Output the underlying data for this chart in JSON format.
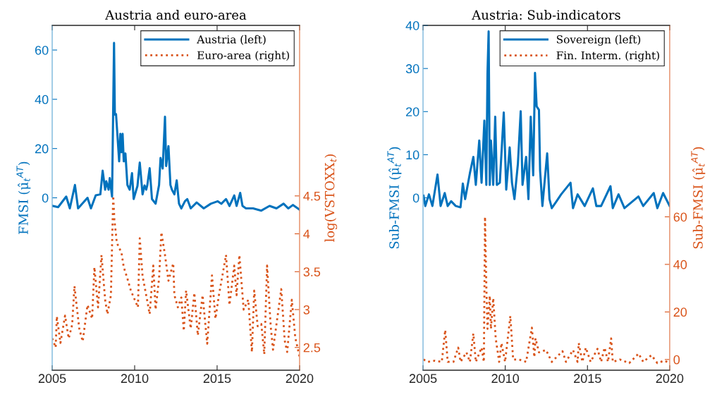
{
  "chart_data": [
    {
      "type": "line",
      "title": "Austria and euro-area",
      "ylabel": "FMSI (μ̂$_{t}$$^{AT}$)",
      "y2label": "log(VSTOXX$_{t}$)",
      "legend": "top right",
      "xlim": [
        2005,
        2020
      ],
      "xticks": [
        2005,
        2010,
        2015,
        2020
      ],
      "ylim": [
        -70,
        70
      ],
      "yticks": [
        0,
        20,
        40,
        60
      ],
      "y2lim": [
        2.2,
        6.75
      ],
      "y2ticks": [
        2.5,
        3,
        3.5,
        4,
        4.5
      ],
      "series": [
        {
          "name": "Austria (left)",
          "color": "#0072bd",
          "line_style": "solid",
          "x": [
            2005.04,
            2005.36,
            2005.85,
            2006.07,
            2006.38,
            2006.57,
            2007.14,
            2007.35,
            2007.64,
            2007.92,
            2008.06,
            2008.21,
            2008.28,
            2008.42,
            2008.49,
            2008.63,
            2008.75,
            2008.8,
            2008.87,
            2008.99,
            2009.06,
            2009.13,
            2009.2,
            2009.27,
            2009.34,
            2009.44,
            2009.56,
            2009.7,
            2009.84,
            2009.94,
            2010.09,
            2010.17,
            2010.31,
            2010.48,
            2010.6,
            2010.7,
            2010.77,
            2010.91,
            2011.05,
            2011.27,
            2011.48,
            2011.57,
            2011.7,
            2011.84,
            2011.91,
            2012.05,
            2012.17,
            2012.26,
            2012.41,
            2012.55,
            2012.69,
            2012.83,
            2013.05,
            2013.19,
            2013.4,
            2013.76,
            2014.19,
            2014.62,
            2015.04,
            2015.26,
            2015.54,
            2015.75,
            2016.04,
            2016.18,
            2016.4,
            2016.54,
            2016.75,
            2017.18,
            2017.68,
            2018.18,
            2018.6,
            2019.03,
            2019.32,
            2019.6,
            2020.0
          ],
          "values": [
            -3.3,
            -3.8,
            0.5,
            -4.3,
            5.2,
            -4.3,
            0,
            -4.3,
            1,
            1.4,
            11,
            3.3,
            6.7,
            3.3,
            8,
            0.5,
            62.9,
            33.8,
            34,
            22,
            14.8,
            26,
            18.5,
            26,
            14.8,
            18,
            5.2,
            3.3,
            10,
            -0.5,
            3,
            4.8,
            14.3,
            1.4,
            5,
            3.3,
            5.2,
            12,
            -0.5,
            -2.4,
            5.2,
            16.2,
            11.9,
            32.9,
            12.9,
            21,
            5.2,
            3.3,
            1.4,
            7.1,
            -2.4,
            -4.3,
            -1.4,
            -0.5,
            -4.3,
            -1.9,
            -4.3,
            -2.4,
            -1.4,
            -2.4,
            -0.5,
            -3.3,
            1,
            -3.3,
            2,
            -3.3,
            -4.3,
            -4.3,
            -5.2,
            -3.3,
            -4.3,
            -2.4,
            -4.3,
            -2.9,
            -4.8
          ]
        },
        {
          "name": "Euro-area (right)",
          "color": "#d95319",
          "line_style": "dotted",
          "axis": "y2",
          "x": [
            2005.0,
            2005.21,
            2005.28,
            2005.5,
            2005.78,
            2006.0,
            2006.21,
            2006.35,
            2006.64,
            2006.85,
            2007.14,
            2007.42,
            2007.56,
            2007.78,
            2007.99,
            2008.21,
            2008.35,
            2008.56,
            2008.7,
            2008.77,
            2008.92,
            2009.2,
            2009.34,
            2009.56,
            2009.77,
            2010.2,
            2010.31,
            2010.48,
            2010.7,
            2010.91,
            2011.13,
            2011.27,
            2011.48,
            2011.62,
            2011.84,
            2012.05,
            2012.34,
            2012.41,
            2012.62,
            2012.83,
            2012.98,
            2013.12,
            2013.4,
            2013.62,
            2013.83,
            2014.12,
            2014.4,
            2014.69,
            2014.9,
            2015.11,
            2015.54,
            2015.75,
            2016.04,
            2016.18,
            2016.35,
            2016.61,
            2016.89,
            2017.11,
            2017.25,
            2017.46,
            2017.68,
            2017.86,
            2018.03,
            2018.25,
            2018.39,
            2018.89,
            2019.1,
            2019.25,
            2019.53,
            2019.74,
            2020.0
          ],
          "values": [
            2.62,
            2.5,
            2.91,
            2.56,
            2.92,
            2.62,
            2.8,
            3.31,
            2.75,
            2.58,
            3.06,
            2.88,
            3.56,
            3.03,
            3.72,
            3.13,
            2.94,
            3.19,
            4.5,
            4.19,
            3.88,
            3.75,
            3.56,
            3.41,
            3.25,
            3.03,
            3.94,
            3.44,
            3.19,
            2.94,
            3.58,
            3.0,
            3.41,
            4.02,
            3.72,
            3.38,
            3.61,
            3.19,
            3.03,
            3.16,
            2.72,
            3.25,
            2.75,
            3.22,
            2.66,
            3.19,
            2.55,
            3.45,
            2.88,
            3.19,
            3.72,
            3.06,
            3.58,
            3.19,
            3.72,
            3.0,
            3.13,
            2.44,
            3.25,
            2.78,
            2.81,
            2.41,
            3.58,
            2.78,
            2.47,
            3.27,
            2.59,
            2.44,
            3.13,
            2.63,
            2.38
          ]
        }
      ]
    },
    {
      "type": "line",
      "title": "Austria: Sub-indicators",
      "ylabel": "Sub-FMSI (μ̂$_{t}$$^{AT}$)",
      "y2label": "Sub-FMSI (μ̂$_{t}$$^{AT}$)",
      "legend": "top right",
      "xlim": [
        2005,
        2020
      ],
      "xticks": [
        2005,
        2010,
        2015,
        2020
      ],
      "ylim": [
        -40,
        40
      ],
      "yticks": [
        0,
        10,
        20,
        30,
        40
      ],
      "y2lim": [
        -4.5,
        140.5
      ],
      "y2ticks": [
        0,
        20,
        40,
        60
      ],
      "series": [
        {
          "name": "Sovereign (left)",
          "color": "#0072bd",
          "line_style": "solid",
          "x": [
            2005.03,
            2005.14,
            2005.36,
            2005.57,
            2005.88,
            2006.07,
            2006.32,
            2006.5,
            2006.71,
            2006.99,
            2007.28,
            2007.42,
            2007.56,
            2007.85,
            2008.06,
            2008.21,
            2008.42,
            2008.56,
            2008.73,
            2008.85,
            2008.92,
            2008.99,
            2009.06,
            2009.13,
            2009.27,
            2009.39,
            2009.49,
            2009.67,
            2009.91,
            2010.06,
            2010.27,
            2010.41,
            2010.56,
            2010.77,
            2010.94,
            2011.05,
            2011.27,
            2011.41,
            2011.55,
            2011.7,
            2011.81,
            2011.91,
            2012.05,
            2012.12,
            2012.26,
            2012.55,
            2012.69,
            2012.83,
            2013.12,
            2013.4,
            2013.97,
            2014.12,
            2014.4,
            2014.83,
            2015.33,
            2015.54,
            2015.83,
            2016.4,
            2016.54,
            2016.89,
            2017.25,
            2018.1,
            2018.39,
            2019.03,
            2019.25,
            2019.6,
            2020.0
          ],
          "values": [
            0.5,
            -1.9,
            0.8,
            -1.9,
            5.4,
            -1.9,
            1.1,
            -1.9,
            -0.8,
            -1.9,
            -2.2,
            3.3,
            -0.3,
            5.7,
            9.5,
            3.0,
            13.3,
            3.5,
            17.9,
            3.0,
            28.8,
            38.6,
            3.0,
            13.3,
            3.0,
            18.8,
            3.0,
            3.5,
            19.8,
            1.9,
            11.7,
            3.5,
            -0.3,
            7.9,
            20.1,
            3.0,
            9.5,
            -0.3,
            18.8,
            5.2,
            29.0,
            21.2,
            20.4,
            6.3,
            -1.9,
            10.3,
            -0.3,
            -2.4,
            -0.8,
            0.8,
            3.5,
            -2.4,
            0.8,
            -1.9,
            2.2,
            -1.9,
            -1.9,
            2.7,
            -2.4,
            0.8,
            -2.4,
            0.3,
            -1.9,
            1.1,
            -2.4,
            1.1,
            -1.9
          ]
        },
        {
          "name": "Fin. Interm. (right)",
          "color": "#d95319",
          "line_style": "dotted",
          "axis": "y2",
          "x": [
            2005.03,
            2005.28,
            2005.71,
            2006.14,
            2006.35,
            2006.5,
            2006.85,
            2007.14,
            2007.28,
            2007.64,
            2007.85,
            2008.06,
            2008.21,
            2008.56,
            2008.7,
            2008.77,
            2008.85,
            2008.92,
            2009.06,
            2009.13,
            2009.27,
            2009.42,
            2009.63,
            2009.77,
            2009.99,
            2010.31,
            2010.48,
            2010.84,
            2011.27,
            2011.62,
            2011.77,
            2011.84,
            2012.05,
            2012.48,
            2012.83,
            2013.48,
            2013.69,
            2014.12,
            2014.4,
            2014.47,
            2014.69,
            2014.9,
            2015.19,
            2015.61,
            2015.83,
            2016.04,
            2016.25,
            2016.44,
            2016.54,
            2016.97,
            2017.54,
            2018.11,
            2018.39,
            2018.89,
            2019.25,
            2019.67,
            2020.0
          ],
          "values": [
            0,
            -1,
            -0.5,
            -1,
            12.4,
            -1,
            -1,
            5,
            -1,
            3,
            -1,
            10.9,
            -1,
            5,
            -1,
            60,
            30.8,
            12.9,
            26.8,
            12.9,
            25.8,
            8.9,
            -1,
            6.9,
            -1,
            18.3,
            0,
            0,
            -1,
            13.4,
            1,
            8.9,
            3,
            4,
            -1,
            3.5,
            -1,
            4,
            -1,
            6.9,
            -1,
            5,
            -1,
            4.5,
            -1,
            5,
            -1,
            8.9,
            -1,
            0,
            -1.5,
            2.5,
            -1,
            1.8,
            -1.5,
            -0.5,
            -1.5
          ]
        }
      ]
    }
  ]
}
